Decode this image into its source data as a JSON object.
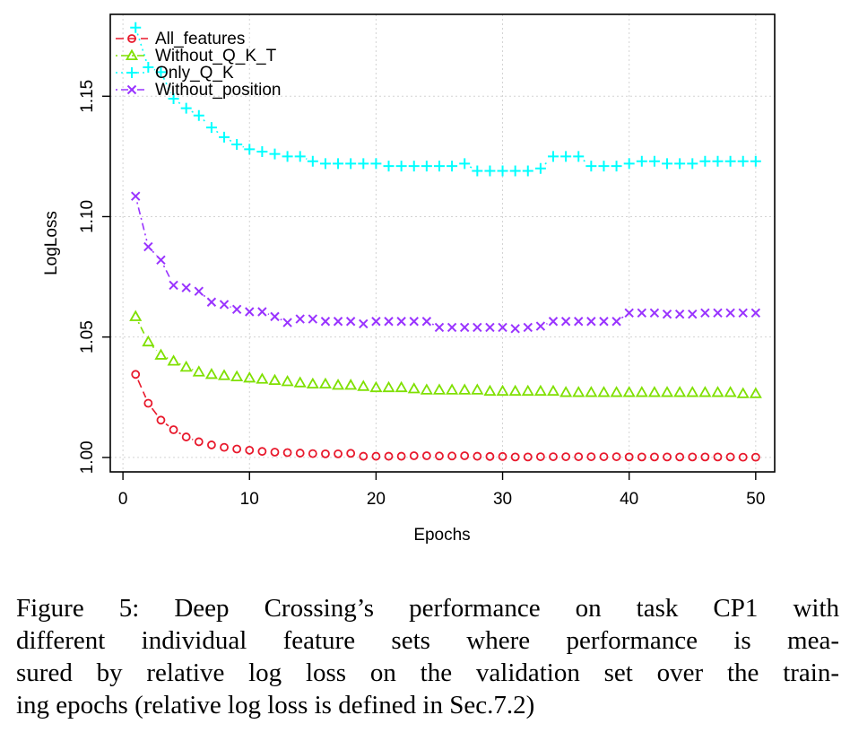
{
  "chart_data": {
    "type": "line",
    "xlabel": "Epochs",
    "ylabel": "LogLoss",
    "xlim": [
      -1,
      51.5
    ],
    "ylim": [
      0.994,
      1.184
    ],
    "xticks": [
      0,
      10,
      20,
      30,
      40,
      50
    ],
    "yticks": [
      1.0,
      1.05,
      1.1,
      1.15
    ],
    "xtick_labels": [
      "0",
      "10",
      "20",
      "30",
      "40",
      "50"
    ],
    "ytick_labels": [
      "1.00",
      "1.05",
      "1.10",
      "1.15"
    ],
    "grid": true,
    "legend_position": "top-left",
    "x": [
      1,
      2,
      3,
      4,
      5,
      6,
      7,
      8,
      9,
      10,
      11,
      12,
      13,
      14,
      15,
      16,
      17,
      18,
      19,
      20,
      21,
      22,
      23,
      24,
      25,
      26,
      27,
      28,
      29,
      30,
      31,
      32,
      33,
      34,
      35,
      36,
      37,
      38,
      39,
      40,
      41,
      42,
      43,
      44,
      45,
      46,
      47,
      48,
      49,
      50
    ],
    "series": [
      {
        "name": "All_features",
        "color": "#e8192c",
        "marker": "circle",
        "dash": "dashed",
        "values": [
          1.0345,
          1.0225,
          1.0155,
          1.0115,
          1.0085,
          1.0065,
          1.0052,
          1.0042,
          1.0035,
          1.003,
          1.0025,
          1.0022,
          1.002,
          1.0018,
          1.0016,
          1.0015,
          1.0015,
          1.0017,
          1.0005,
          1.0005,
          1.0005,
          1.0005,
          1.0007,
          1.0007,
          1.0006,
          1.0006,
          1.0007,
          1.0005,
          1.0004,
          1.0004,
          1.0002,
          1.0002,
          1.0003,
          1.0003,
          1.0003,
          1.0003,
          1.0003,
          1.0003,
          1.0003,
          1.0002,
          1.0002,
          1.0002,
          1.0002,
          1.0002,
          1.0002,
          1.0002,
          1.0002,
          1.0002,
          1.0001,
          1.0001
        ]
      },
      {
        "name": "Without_Q_K_T",
        "color": "#7fe000",
        "marker": "triangle",
        "dash": "dotdash",
        "values": [
          1.0585,
          1.048,
          1.0425,
          1.04,
          1.0375,
          1.0355,
          1.0345,
          1.034,
          1.0335,
          1.033,
          1.0325,
          1.032,
          1.0315,
          1.031,
          1.0305,
          1.0305,
          1.03,
          1.03,
          1.0295,
          1.029,
          1.029,
          1.029,
          1.0285,
          1.028,
          1.028,
          1.028,
          1.028,
          1.028,
          1.0275,
          1.0275,
          1.0275,
          1.0275,
          1.0275,
          1.0275,
          1.027,
          1.027,
          1.027,
          1.027,
          1.027,
          1.027,
          1.027,
          1.027,
          1.027,
          1.027,
          1.027,
          1.027,
          1.027,
          1.027,
          1.0265,
          1.0265
        ]
      },
      {
        "name": "Only_Q_K",
        "color": "#00ffff",
        "marker": "plus",
        "dash": "dotted",
        "values": [
          1.1785,
          1.162,
          1.16,
          1.149,
          1.145,
          1.142,
          1.137,
          1.133,
          1.13,
          1.128,
          1.127,
          1.126,
          1.125,
          1.125,
          1.123,
          1.122,
          1.122,
          1.122,
          1.122,
          1.122,
          1.121,
          1.121,
          1.121,
          1.121,
          1.121,
          1.121,
          1.122,
          1.119,
          1.119,
          1.119,
          1.119,
          1.119,
          1.12,
          1.125,
          1.125,
          1.125,
          1.121,
          1.121,
          1.121,
          1.122,
          1.123,
          1.123,
          1.122,
          1.122,
          1.122,
          1.123,
          1.123,
          1.123,
          1.123,
          1.123
        ]
      },
      {
        "name": "Without_position",
        "color": "#9933ff",
        "marker": "cross",
        "dash": "dotdash",
        "values": [
          1.1085,
          1.0875,
          1.082,
          1.0715,
          1.0705,
          1.069,
          1.0645,
          1.0635,
          1.0615,
          1.0605,
          1.0605,
          1.0585,
          1.056,
          1.0575,
          1.0575,
          1.0565,
          1.0565,
          1.0565,
          1.0555,
          1.0565,
          1.0565,
          1.0565,
          1.0565,
          1.0565,
          1.054,
          1.054,
          1.054,
          1.054,
          1.054,
          1.054,
          1.0535,
          1.054,
          1.0545,
          1.0565,
          1.0565,
          1.0565,
          1.0565,
          1.0565,
          1.0565,
          1.06,
          1.06,
          1.06,
          1.0595,
          1.0595,
          1.0595,
          1.06,
          1.06,
          1.06,
          1.06,
          1.06
        ]
      }
    ]
  },
  "caption": {
    "lines": [
      "Figure 5: Deep Crossing’s performance on task CP1 with",
      "different individual feature sets where performance is mea-",
      "sured by relative log loss on the validation set over the train-",
      "ing epochs (relative log loss is defined in Sec.7.2)"
    ]
  }
}
